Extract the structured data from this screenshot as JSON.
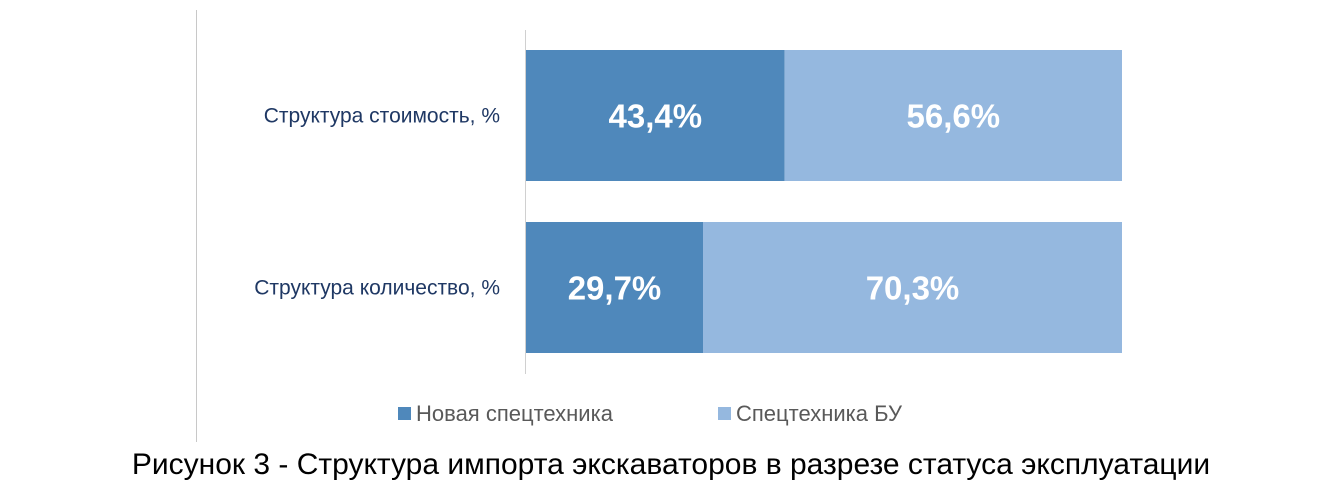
{
  "chart_data": {
    "type": "bar",
    "orientation": "horizontal",
    "stacked": "percent",
    "categories": [
      "Структура стоимость, %",
      "Структура количество, %"
    ],
    "series": [
      {
        "name": "Новая спецтехника",
        "color": "#4f88bb",
        "values": [
          43.4,
          29.7
        ],
        "labels": [
          "43,4%",
          "29,7%"
        ]
      },
      {
        "name": "Спецтехника БУ",
        "color": "#95b8df",
        "values": [
          56.6,
          70.3
        ],
        "labels": [
          "56,6%",
          "70,3%"
        ]
      }
    ],
    "xlim": [
      0,
      100
    ],
    "grid": false,
    "legend": "bottom"
  },
  "caption": "Рисунок 3 - Структура импорта экскаваторов в разрезе статуса эксплуатации"
}
